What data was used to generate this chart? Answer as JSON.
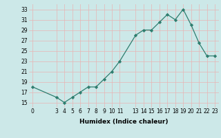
{
  "x": [
    0,
    3,
    4,
    5,
    6,
    7,
    8,
    9,
    10,
    11,
    13,
    14,
    15,
    16,
    17,
    18,
    19,
    20,
    21,
    22,
    23
  ],
  "y": [
    18,
    16,
    15,
    16,
    17,
    18,
    18,
    19.5,
    21,
    23,
    28,
    29,
    29,
    30.5,
    32,
    31,
    33,
    30,
    26.5,
    24,
    24
  ],
  "xlabel": "Humidex (Indice chaleur)",
  "xlim": [
    -0.5,
    23.5
  ],
  "ylim": [
    14,
    34
  ],
  "yticks": [
    15,
    17,
    19,
    21,
    23,
    25,
    27,
    29,
    31,
    33
  ],
  "xticks": [
    0,
    3,
    4,
    5,
    6,
    7,
    8,
    9,
    10,
    11,
    13,
    14,
    15,
    16,
    17,
    18,
    19,
    20,
    21,
    22,
    23
  ],
  "line_color": "#2e7d6e",
  "marker_color": "#2e7d6e",
  "bg_color": "#cce8e8",
  "grid_color": "#e8b4b4",
  "label_fontsize": 6.5,
  "tick_fontsize": 5.5
}
